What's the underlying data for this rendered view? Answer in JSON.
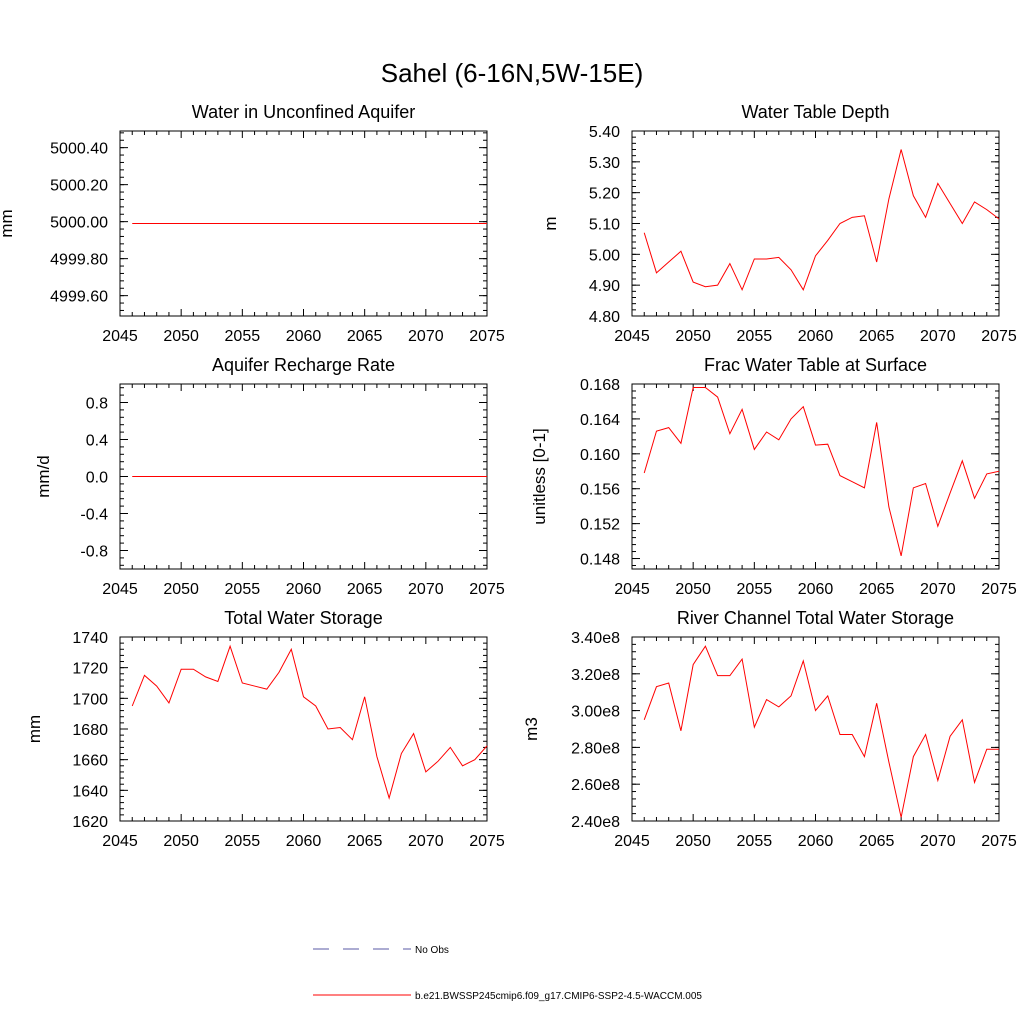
{
  "title": "Sahel (6-16N,5W-15E)",
  "colors": {
    "model": "#ff0000",
    "obs": "#5a5aa6",
    "axis": "#000000"
  },
  "legend": {
    "obs_label": "No Obs",
    "model_label": "b.e21.BWSSP245cmip6.f09_g17.CMIP6-SSP2-4.5-WACCM.005"
  },
  "chart_data": [
    {
      "type": "line",
      "title": "Water in Unconfined Aquifer",
      "ylabel": "mm",
      "xlim": [
        2045,
        2075
      ],
      "ylim": [
        4999.49,
        5000.49
      ],
      "xticks": [
        2045,
        2050,
        2055,
        2060,
        2065,
        2070,
        2075
      ],
      "xtick_labels": [
        "2045",
        "2050",
        "2055",
        "2060",
        "2065",
        "2070",
        "2075"
      ],
      "yticks": [
        4999.6,
        4999.8,
        5000.0,
        5000.2,
        5000.4
      ],
      "ytick_labels": [
        "4999.60",
        "4999.80",
        "5000.00",
        "5000.20",
        "5000.40"
      ],
      "x": [
        2046,
        2047,
        2048,
        2049,
        2050,
        2051,
        2052,
        2053,
        2054,
        2055,
        2056,
        2057,
        2058,
        2059,
        2060,
        2061,
        2062,
        2063,
        2064,
        2065,
        2066,
        2067,
        2068,
        2069,
        2070,
        2071,
        2072,
        2073,
        2074,
        2075
      ],
      "values": [
        4999.99,
        4999.99,
        4999.99,
        4999.99,
        4999.99,
        4999.99,
        4999.99,
        4999.99,
        4999.99,
        4999.99,
        4999.99,
        4999.99,
        4999.99,
        4999.99,
        4999.99,
        4999.99,
        4999.99,
        4999.99,
        4999.99,
        4999.99,
        4999.99,
        4999.99,
        4999.99,
        4999.99,
        4999.99,
        4999.99,
        4999.99,
        4999.99,
        4999.99,
        4999.99
      ]
    },
    {
      "type": "line",
      "title": "Water Table Depth",
      "ylabel": "m",
      "xlim": [
        2045,
        2075
      ],
      "ylim": [
        4.8,
        5.4
      ],
      "xticks": [
        2045,
        2050,
        2055,
        2060,
        2065,
        2070,
        2075
      ],
      "xtick_labels": [
        "2045",
        "2050",
        "2055",
        "2060",
        "2065",
        "2070",
        "2075"
      ],
      "yticks": [
        4.8,
        4.9,
        5.0,
        5.1,
        5.2,
        5.3,
        5.4
      ],
      "ytick_labels": [
        "4.80",
        "4.90",
        "5.00",
        "5.10",
        "5.20",
        "5.30",
        "5.40"
      ],
      "x": [
        2046,
        2047,
        2048,
        2049,
        2050,
        2051,
        2052,
        2053,
        2054,
        2055,
        2056,
        2057,
        2058,
        2059,
        2060,
        2061,
        2062,
        2063,
        2064,
        2065,
        2066,
        2067,
        2068,
        2069,
        2070,
        2071,
        2072,
        2073,
        2074,
        2075
      ],
      "values": [
        5.07,
        4.94,
        4.975,
        5.01,
        4.91,
        4.895,
        4.9,
        4.97,
        4.885,
        4.985,
        4.985,
        4.99,
        4.95,
        4.885,
        4.995,
        5.045,
        5.1,
        5.12,
        5.125,
        4.975,
        5.18,
        5.34,
        5.19,
        5.12,
        5.23,
        5.165,
        5.1,
        5.17,
        5.145,
        5.115
      ]
    },
    {
      "type": "line",
      "title": "Aquifer Recharge Rate",
      "ylabel": "mm/d",
      "xlim": [
        2045,
        2075
      ],
      "ylim": [
        -1.0,
        1.0
      ],
      "xticks": [
        2045,
        2050,
        2055,
        2060,
        2065,
        2070,
        2075
      ],
      "xtick_labels": [
        "2045",
        "2050",
        "2055",
        "2060",
        "2065",
        "2070",
        "2075"
      ],
      "yticks": [
        -0.8,
        -0.4,
        0.0,
        0.4,
        0.8
      ],
      "ytick_labels": [
        "-0.8",
        "-0.4",
        "0.0",
        "0.4",
        "0.8"
      ],
      "x": [
        2046,
        2047,
        2048,
        2049,
        2050,
        2051,
        2052,
        2053,
        2054,
        2055,
        2056,
        2057,
        2058,
        2059,
        2060,
        2061,
        2062,
        2063,
        2064,
        2065,
        2066,
        2067,
        2068,
        2069,
        2070,
        2071,
        2072,
        2073,
        2074,
        2075
      ],
      "values": [
        0,
        0,
        0,
        0,
        0,
        0,
        0,
        0,
        0,
        0,
        0,
        0,
        0,
        0,
        0,
        0,
        0,
        0,
        0,
        0,
        0,
        0,
        0,
        0,
        0,
        0,
        0,
        0,
        0,
        0
      ]
    },
    {
      "type": "line",
      "title": "Frac Water Table at Surface",
      "ylabel": "unitless [0-1]",
      "xlim": [
        2045,
        2075
      ],
      "ylim": [
        0.1468,
        0.168
      ],
      "xticks": [
        2045,
        2050,
        2055,
        2060,
        2065,
        2070,
        2075
      ],
      "xtick_labels": [
        "2045",
        "2050",
        "2055",
        "2060",
        "2065",
        "2070",
        "2075"
      ],
      "yticks": [
        0.148,
        0.152,
        0.156,
        0.16,
        0.164,
        0.168
      ],
      "ytick_labels": [
        "0.148",
        "0.152",
        "0.156",
        "0.160",
        "0.164",
        "0.168"
      ],
      "x": [
        2046,
        2047,
        2048,
        2049,
        2050,
        2051,
        2052,
        2053,
        2054,
        2055,
        2056,
        2057,
        2058,
        2059,
        2060,
        2061,
        2062,
        2063,
        2064,
        2065,
        2066,
        2067,
        2068,
        2069,
        2070,
        2071,
        2072,
        2073,
        2074,
        2075
      ],
      "values": [
        0.1578,
        0.1626,
        0.163,
        0.1612,
        0.1676,
        0.1676,
        0.1665,
        0.1623,
        0.1651,
        0.1605,
        0.1625,
        0.1616,
        0.164,
        0.1654,
        0.161,
        0.1611,
        0.1575,
        0.1568,
        0.1561,
        0.1636,
        0.1539,
        0.1483,
        0.1561,
        0.1566,
        0.1517,
        0.1555,
        0.1592,
        0.1549,
        0.1577,
        0.158
      ]
    },
    {
      "type": "line",
      "title": "Total Water Storage",
      "ylabel": "mm",
      "xlim": [
        2045,
        2075
      ],
      "ylim": [
        1620,
        1740
      ],
      "xticks": [
        2045,
        2050,
        2055,
        2060,
        2065,
        2070,
        2075
      ],
      "xtick_labels": [
        "2045",
        "2050",
        "2055",
        "2060",
        "2065",
        "2070",
        "2075"
      ],
      "yticks": [
        1620,
        1640,
        1660,
        1680,
        1700,
        1720,
        1740
      ],
      "ytick_labels": [
        "1620",
        "1640",
        "1660",
        "1680",
        "1700",
        "1720",
        "1740"
      ],
      "x": [
        2046,
        2047,
        2048,
        2049,
        2050,
        2051,
        2052,
        2053,
        2054,
        2055,
        2056,
        2057,
        2058,
        2059,
        2060,
        2061,
        2062,
        2063,
        2064,
        2065,
        2066,
        2067,
        2068,
        2069,
        2070,
        2071,
        2072,
        2073,
        2074,
        2075
      ],
      "values": [
        1695,
        1715,
        1708,
        1697,
        1719,
        1719,
        1714,
        1711,
        1734,
        1710,
        1708,
        1706,
        1717,
        1732,
        1701,
        1695,
        1680,
        1681,
        1673,
        1701,
        1662,
        1635,
        1664,
        1677,
        1652,
        1659,
        1668,
        1656,
        1660,
        1669
      ]
    },
    {
      "type": "line",
      "title": "River Channel Total Water Storage",
      "ylabel": "m3",
      "xlim": [
        2045,
        2075
      ],
      "ylim": [
        240000000,
        340000000
      ],
      "xticks": [
        2045,
        2050,
        2055,
        2060,
        2065,
        2070,
        2075
      ],
      "xtick_labels": [
        "2045",
        "2050",
        "2055",
        "2060",
        "2065",
        "2070",
        "2075"
      ],
      "yticks": [
        240000000,
        260000000,
        280000000,
        300000000,
        320000000,
        340000000
      ],
      "ytick_labels": [
        "2.40e8",
        "2.60e8",
        "2.80e8",
        "3.00e8",
        "3.20e8",
        "3.40e8"
      ],
      "x": [
        2046,
        2047,
        2048,
        2049,
        2050,
        2051,
        2052,
        2053,
        2054,
        2055,
        2056,
        2057,
        2058,
        2059,
        2060,
        2061,
        2062,
        2063,
        2064,
        2065,
        2066,
        2067,
        2068,
        2069,
        2070,
        2071,
        2072,
        2073,
        2074,
        2075
      ],
      "values": [
        295000000,
        313000000,
        315000000,
        289000000,
        325000000,
        335000000,
        319000000,
        319000000,
        328000000,
        291000000,
        306000000,
        302000000,
        308000000,
        327000000,
        300000000,
        308000000,
        287000000,
        287000000,
        275000000,
        304000000,
        272000000,
        242000000,
        275000000,
        287000000,
        262000000,
        286000000,
        295000000,
        261000000,
        279000000,
        279000000
      ]
    }
  ]
}
